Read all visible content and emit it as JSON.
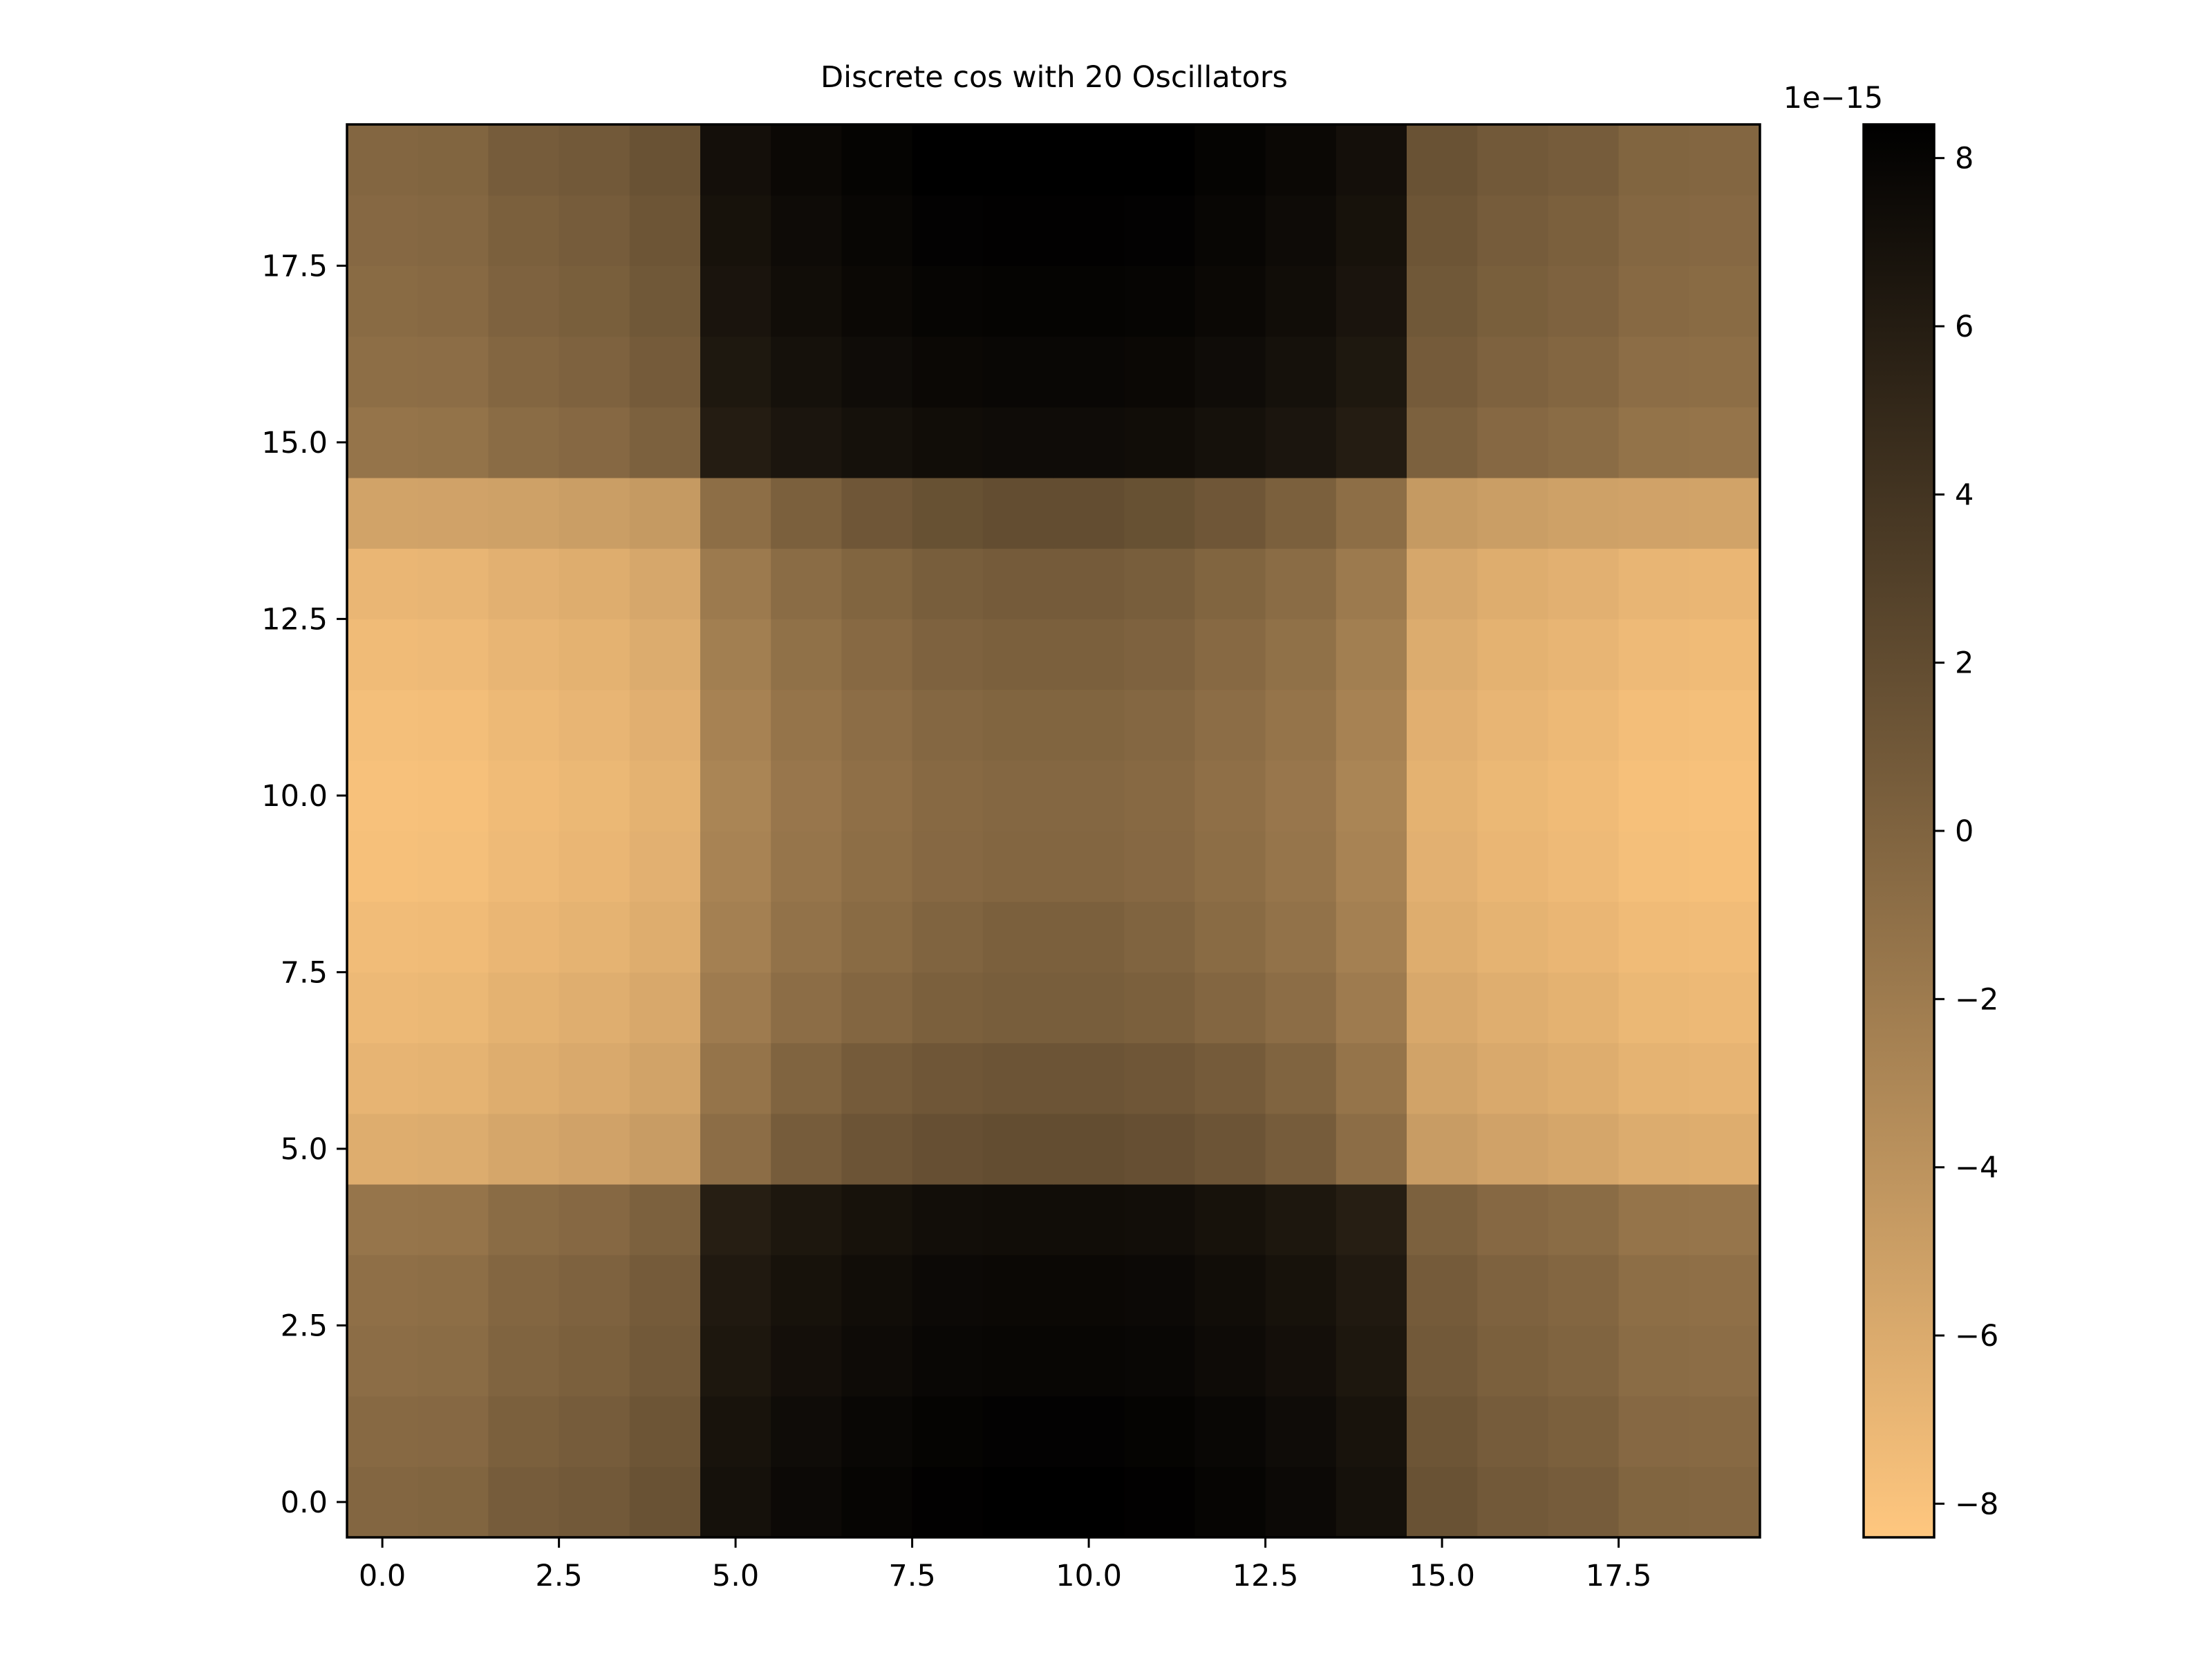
{
  "chart_data": {
    "type": "heatmap",
    "title": "Discrete cos with 20 Oscillators",
    "xlabel": "",
    "ylabel": "",
    "n_cols": 20,
    "n_rows": 20,
    "xlim": [
      -0.5,
      19.5
    ],
    "ylim": [
      -0.5,
      19.5
    ],
    "x_ticks": [
      0.0,
      2.5,
      5.0,
      7.5,
      10.0,
      12.5,
      15.0,
      17.5
    ],
    "x_tick_labels": [
      "0.0",
      "2.5",
      "5.0",
      "7.5",
      "10.0",
      "12.5",
      "15.0",
      "17.5"
    ],
    "y_ticks": [
      0.0,
      2.5,
      5.0,
      7.5,
      10.0,
      12.5,
      15.0,
      17.5
    ],
    "y_tick_labels": [
      "0.0",
      "2.5",
      "5.0",
      "7.5",
      "10.0",
      "12.5",
      "15.0",
      "17.5"
    ],
    "colormap": "copper_r",
    "colormap_stops": [
      "#ffc77f",
      "#000000"
    ],
    "colorbar": {
      "vmin": -8.4,
      "vmax": 8.4,
      "ticks": [
        -8,
        -6,
        -4,
        -2,
        0,
        2,
        4,
        6,
        8
      ],
      "tick_labels": [
        "−8",
        "−6",
        "−4",
        "−2",
        "0",
        "2",
        "4",
        "6",
        "8"
      ],
      "offset_label": "1e−15"
    },
    "values_scale": 1e-15,
    "values": [
      [
        -0.2,
        -0.1,
        0.6,
        0.9,
        1.5,
        7.0,
        7.6,
        8.0,
        8.3,
        8.4,
        8.4,
        8.3,
        8.0,
        7.6,
        7.0,
        1.5,
        0.9,
        0.6,
        -0.1,
        -0.2
      ],
      [
        -0.5,
        -0.4,
        0.3,
        0.6,
        1.2,
        6.8,
        7.4,
        7.8,
        8.1,
        8.2,
        8.2,
        8.1,
        7.8,
        7.4,
        6.8,
        1.2,
        0.6,
        0.3,
        -0.4,
        -0.5
      ],
      [
        -0.8,
        -0.7,
        0.0,
        0.3,
        0.9,
        6.5,
        7.1,
        7.5,
        7.8,
        7.9,
        7.9,
        7.8,
        7.5,
        7.1,
        6.5,
        0.9,
        0.3,
        0.0,
        -0.7,
        -0.8
      ],
      [
        -1.0,
        -0.9,
        -0.2,
        0.1,
        0.7,
        6.3,
        6.9,
        7.3,
        7.6,
        7.7,
        7.7,
        7.6,
        7.3,
        6.9,
        6.3,
        0.7,
        0.1,
        -0.2,
        -0.9,
        -1.0
      ],
      [
        -1.5,
        -1.4,
        -0.7,
        -0.4,
        0.2,
        5.9,
        6.5,
        6.9,
        7.2,
        7.3,
        7.3,
        7.2,
        6.9,
        6.5,
        5.9,
        0.2,
        -0.4,
        -0.7,
        -1.4,
        -1.5
      ],
      [
        -6.2,
        -6.1,
        -5.6,
        -5.3,
        -4.8,
        -0.8,
        0.6,
        1.3,
        1.7,
        1.9,
        1.9,
        1.7,
        1.3,
        0.6,
        -0.8,
        -4.8,
        -5.3,
        -5.6,
        -6.1,
        -6.2
      ],
      [
        -6.8,
        -6.7,
        -6.2,
        -5.9,
        -5.4,
        -1.4,
        0.0,
        0.7,
        1.1,
        1.3,
        1.3,
        1.1,
        0.7,
        0.0,
        -1.4,
        -5.4,
        -5.9,
        -6.2,
        -6.7,
        -6.8
      ],
      [
        -7.2,
        -7.1,
        -6.6,
        -6.3,
        -5.8,
        -2.0,
        -0.8,
        -0.2,
        0.3,
        0.5,
        0.5,
        0.3,
        -0.2,
        -0.8,
        -2.0,
        -5.8,
        -6.3,
        -6.6,
        -7.1,
        -7.2
      ],
      [
        -7.5,
        -7.4,
        -7.0,
        -6.7,
        -6.2,
        -2.4,
        -1.2,
        -0.6,
        0.0,
        0.3,
        0.3,
        0.0,
        -0.6,
        -1.2,
        -2.4,
        -6.2,
        -6.7,
        -7.0,
        -7.4,
        -7.5
      ],
      [
        -7.8,
        -7.7,
        -7.3,
        -7.0,
        -6.5,
        -2.7,
        -1.5,
        -0.9,
        -0.4,
        -0.2,
        -0.2,
        -0.4,
        -0.9,
        -1.5,
        -2.7,
        -6.5,
        -7.0,
        -7.3,
        -7.7,
        -7.8
      ],
      [
        -7.9,
        -7.8,
        -7.4,
        -7.1,
        -6.6,
        -2.8,
        -1.6,
        -1.0,
        -0.5,
        -0.3,
        -0.3,
        -0.5,
        -1.0,
        -1.6,
        -2.8,
        -6.6,
        -7.1,
        -7.4,
        -7.8,
        -7.9
      ],
      [
        -7.7,
        -7.6,
        -7.2,
        -6.9,
        -6.4,
        -2.6,
        -1.4,
        -0.8,
        -0.3,
        -0.1,
        -0.1,
        -0.3,
        -0.8,
        -1.4,
        -2.6,
        -6.4,
        -6.9,
        -7.2,
        -7.6,
        -7.7
      ],
      [
        -7.4,
        -7.3,
        -6.9,
        -6.6,
        -6.1,
        -2.3,
        -1.1,
        -0.5,
        0.1,
        0.3,
        0.3,
        0.1,
        -0.5,
        -1.1,
        -2.3,
        -6.1,
        -6.6,
        -6.9,
        -7.3,
        -7.4
      ],
      [
        -7.0,
        -6.9,
        -6.5,
        -6.2,
        -5.7,
        -1.9,
        -0.7,
        -0.1,
        0.5,
        0.7,
        0.7,
        0.5,
        -0.1,
        -0.7,
        -1.9,
        -5.7,
        -6.2,
        -6.5,
        -6.9,
        -7.0
      ],
      [
        -5.4,
        -5.3,
        -5.2,
        -4.9,
        -4.6,
        -0.9,
        0.3,
        1.1,
        1.6,
        1.9,
        1.9,
        1.6,
        1.1,
        0.3,
        -0.9,
        -4.6,
        -4.9,
        -5.2,
        -5.3,
        -5.4
      ],
      [
        -1.4,
        -1.3,
        -0.7,
        -0.4,
        0.2,
        6.0,
        6.6,
        7.0,
        7.3,
        7.4,
        7.4,
        7.3,
        7.0,
        6.6,
        6.0,
        0.2,
        -0.4,
        -0.7,
        -1.3,
        -1.4
      ],
      [
        -0.9,
        -0.8,
        -0.2,
        0.1,
        0.7,
        6.4,
        7.0,
        7.4,
        7.7,
        7.8,
        7.8,
        7.7,
        7.4,
        7.0,
        6.4,
        0.7,
        0.1,
        -0.2,
        -0.8,
        -0.9
      ],
      [
        -0.6,
        -0.5,
        0.1,
        0.4,
        1.0,
        6.7,
        7.3,
        7.7,
        8.0,
        8.1,
        8.1,
        8.0,
        7.7,
        7.3,
        6.7,
        1.0,
        0.4,
        0.1,
        -0.5,
        -0.6
      ],
      [
        -0.4,
        -0.3,
        0.3,
        0.6,
        1.2,
        6.9,
        7.5,
        7.9,
        8.2,
        8.3,
        8.3,
        8.2,
        7.9,
        7.5,
        6.9,
        1.2,
        0.6,
        0.3,
        -0.3,
        -0.4
      ],
      [
        -0.2,
        -0.1,
        0.6,
        0.9,
        1.5,
        7.1,
        7.7,
        8.1,
        8.4,
        8.5,
        8.5,
        8.4,
        8.1,
        7.7,
        7.1,
        1.5,
        0.9,
        0.6,
        -0.1,
        -0.2
      ]
    ]
  }
}
